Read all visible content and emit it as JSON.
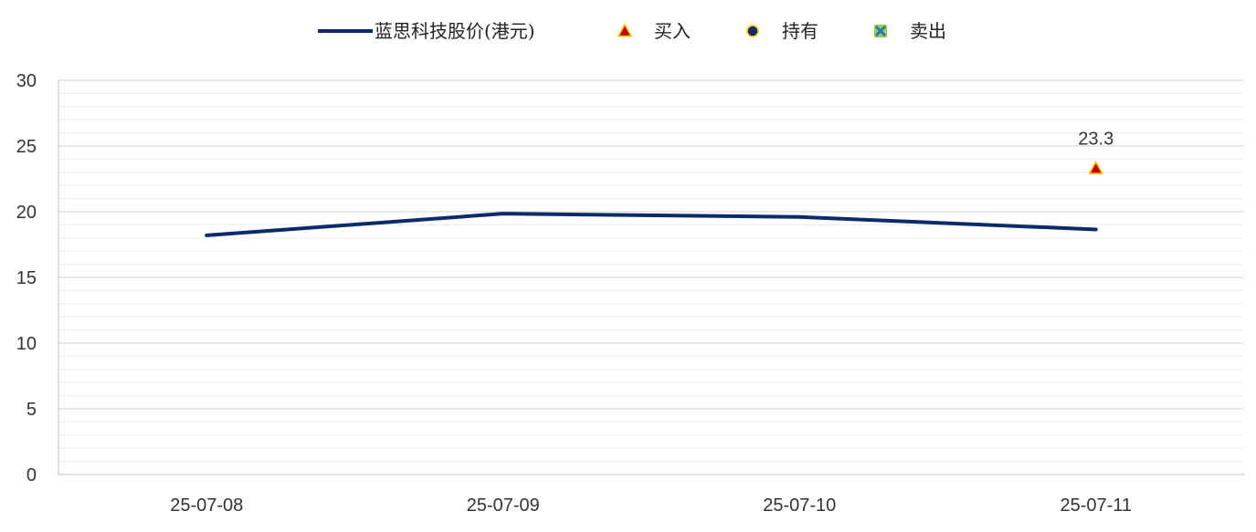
{
  "chart_data": {
    "type": "line",
    "categories": [
      "25-07-08",
      "25-07-09",
      "25-07-10",
      "25-07-11"
    ],
    "series": [
      {
        "name": "蓝思科技股价(港元)",
        "type": "line",
        "color": "#0d2b6b",
        "values": [
          18.2,
          19.85,
          19.6,
          18.65
        ]
      }
    ],
    "markers": [
      {
        "name": "买入",
        "symbol": "triangle",
        "color": "#c00000",
        "edge_color": "#ffc000",
        "points": [
          {
            "x": "25-07-11",
            "y": 23.3,
            "label": "23.3"
          }
        ]
      },
      {
        "name": "持有",
        "symbol": "circle",
        "color": "#0d2b6b",
        "edge_color": "#ffc000",
        "points": []
      },
      {
        "name": "卖出",
        "symbol": "x-square",
        "color": "#2e75b6",
        "edge_color": "#92d050",
        "points": []
      }
    ],
    "yticks": [
      "0",
      "5",
      "10",
      "15",
      "20",
      "25",
      "30"
    ],
    "ylim": [
      0,
      30
    ],
    "grid": true,
    "legend_position": "top"
  }
}
